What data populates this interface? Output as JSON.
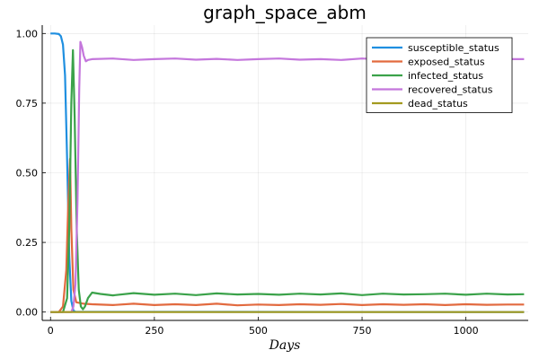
{
  "chart_data": {
    "type": "line",
    "title": "graph_space_abm",
    "xlabel": "Days",
    "ylabel": "",
    "xlim": [
      -20,
      1150
    ],
    "ylim": [
      -0.03,
      1.03
    ],
    "x_ticks": [
      0,
      250,
      500,
      750,
      1000
    ],
    "x_tick_labels": [
      "0",
      "250",
      "500",
      "750",
      "1000"
    ],
    "y_ticks": [
      0,
      0.25,
      0.5,
      0.75,
      1.0
    ],
    "y_tick_labels": [
      "0.00",
      "0.25",
      "0.50",
      "0.75",
      "1.00"
    ],
    "grid": true,
    "legend_position": "top-right",
    "series": [
      {
        "name": "susceptible_status",
        "color": "#1f8fe0",
        "points": [
          [
            0,
            1.0
          ],
          [
            10,
            1.0
          ],
          [
            20,
            0.998
          ],
          [
            25,
            0.99
          ],
          [
            30,
            0.96
          ],
          [
            35,
            0.85
          ],
          [
            40,
            0.55
          ],
          [
            45,
            0.2
          ],
          [
            50,
            0.04
          ],
          [
            55,
            0.005
          ],
          [
            60,
            0.001
          ],
          [
            1140,
            0.0
          ]
        ]
      },
      {
        "name": "exposed_status",
        "color": "#e26a3f",
        "points": [
          [
            0,
            0.0
          ],
          [
            20,
            0.0
          ],
          [
            30,
            0.02
          ],
          [
            38,
            0.15
          ],
          [
            43,
            0.4
          ],
          [
            47,
            0.55
          ],
          [
            50,
            0.3
          ],
          [
            55,
            0.08
          ],
          [
            62,
            0.035
          ],
          [
            80,
            0.03
          ],
          [
            100,
            0.028
          ],
          [
            150,
            0.025
          ],
          [
            200,
            0.03
          ],
          [
            250,
            0.025
          ],
          [
            300,
            0.028
          ],
          [
            350,
            0.025
          ],
          [
            400,
            0.03
          ],
          [
            450,
            0.024
          ],
          [
            500,
            0.027
          ],
          [
            550,
            0.025
          ],
          [
            600,
            0.028
          ],
          [
            650,
            0.026
          ],
          [
            700,
            0.029
          ],
          [
            750,
            0.025
          ],
          [
            800,
            0.028
          ],
          [
            850,
            0.026
          ],
          [
            900,
            0.028
          ],
          [
            950,
            0.025
          ],
          [
            1000,
            0.028
          ],
          [
            1050,
            0.026
          ],
          [
            1100,
            0.027
          ],
          [
            1140,
            0.027
          ]
        ]
      },
      {
        "name": "infected_status",
        "color": "#3ba24a",
        "points": [
          [
            0,
            0.0
          ],
          [
            30,
            0.0
          ],
          [
            40,
            0.05
          ],
          [
            45,
            0.3
          ],
          [
            50,
            0.75
          ],
          [
            54,
            0.94
          ],
          [
            58,
            0.7
          ],
          [
            63,
            0.3
          ],
          [
            68,
            0.08
          ],
          [
            73,
            0.02
          ],
          [
            78,
            0.01
          ],
          [
            83,
            0.02
          ],
          [
            90,
            0.05
          ],
          [
            100,
            0.07
          ],
          [
            120,
            0.065
          ],
          [
            150,
            0.06
          ],
          [
            200,
            0.068
          ],
          [
            250,
            0.062
          ],
          [
            300,
            0.066
          ],
          [
            350,
            0.061
          ],
          [
            400,
            0.067
          ],
          [
            450,
            0.063
          ],
          [
            500,
            0.065
          ],
          [
            550,
            0.062
          ],
          [
            600,
            0.066
          ],
          [
            650,
            0.063
          ],
          [
            700,
            0.067
          ],
          [
            750,
            0.061
          ],
          [
            800,
            0.066
          ],
          [
            850,
            0.063
          ],
          [
            900,
            0.064
          ],
          [
            950,
            0.066
          ],
          [
            1000,
            0.062
          ],
          [
            1050,
            0.066
          ],
          [
            1100,
            0.063
          ],
          [
            1140,
            0.064
          ]
        ]
      },
      {
        "name": "recovered_status",
        "color": "#c476dc",
        "points": [
          [
            0,
            0.0
          ],
          [
            50,
            0.0
          ],
          [
            55,
            0.02
          ],
          [
            60,
            0.1
          ],
          [
            65,
            0.4
          ],
          [
            69,
            0.8
          ],
          [
            72,
            0.97
          ],
          [
            76,
            0.95
          ],
          [
            80,
            0.92
          ],
          [
            85,
            0.9
          ],
          [
            90,
            0.905
          ],
          [
            100,
            0.908
          ],
          [
            150,
            0.91
          ],
          [
            200,
            0.905
          ],
          [
            250,
            0.908
          ],
          [
            300,
            0.91
          ],
          [
            350,
            0.906
          ],
          [
            400,
            0.909
          ],
          [
            450,
            0.905
          ],
          [
            500,
            0.908
          ],
          [
            550,
            0.91
          ],
          [
            600,
            0.906
          ],
          [
            650,
            0.908
          ],
          [
            700,
            0.905
          ],
          [
            750,
            0.91
          ],
          [
            800,
            0.907
          ],
          [
            850,
            0.905
          ],
          [
            900,
            0.909
          ],
          [
            950,
            0.907
          ],
          [
            1000,
            0.91
          ],
          [
            1050,
            0.906
          ],
          [
            1100,
            0.908
          ],
          [
            1140,
            0.908
          ]
        ]
      },
      {
        "name": "dead_status",
        "color": "#a39a1f",
        "points": [
          [
            0,
            0.0
          ],
          [
            1140,
            0.0
          ]
        ]
      }
    ]
  }
}
